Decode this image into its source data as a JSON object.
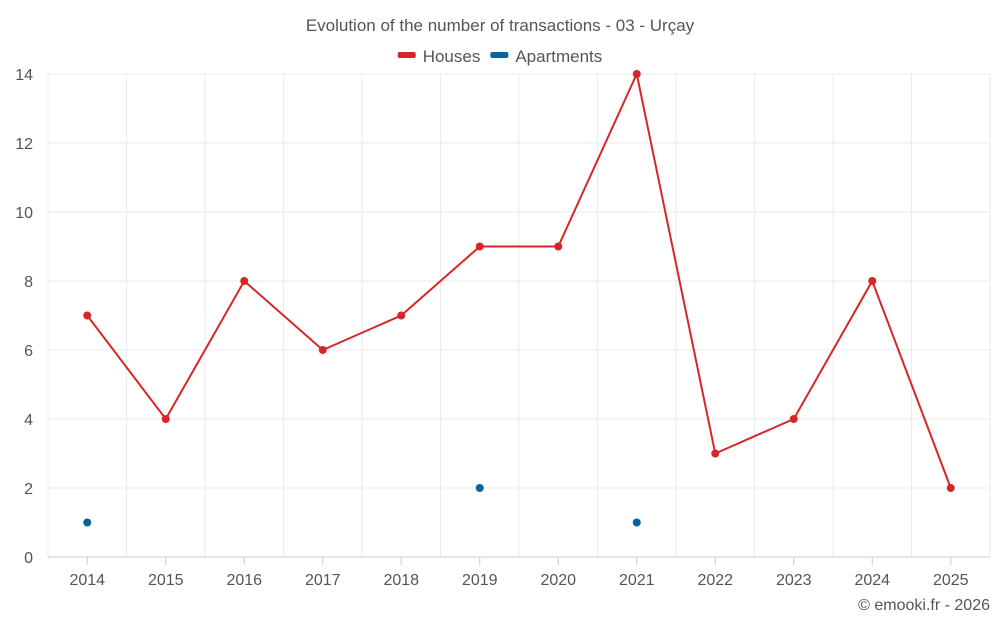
{
  "chart_data": {
    "type": "line",
    "title": "Evolution of the number of transactions - 03 - Urçay",
    "categories": [
      "2014",
      "2015",
      "2016",
      "2017",
      "2018",
      "2019",
      "2020",
      "2021",
      "2022",
      "2023",
      "2024",
      "2025"
    ],
    "series": [
      {
        "name": "Houses",
        "color": "#d62728",
        "style": "line-with-markers",
        "values": [
          7,
          4,
          8,
          6,
          7,
          9,
          9,
          14,
          3,
          4,
          8,
          2
        ]
      },
      {
        "name": "Apartments",
        "color": "#08639c",
        "style": "markers-only",
        "values": [
          1,
          null,
          null,
          null,
          null,
          2,
          null,
          1,
          null,
          null,
          null,
          null
        ]
      }
    ],
    "ylim": [
      0,
      14
    ],
    "yticks": [
      0,
      2,
      4,
      6,
      8,
      10,
      12,
      14
    ],
    "grid": true,
    "legend_position": "top-center",
    "credit": "© emooki.fr - 2026"
  }
}
